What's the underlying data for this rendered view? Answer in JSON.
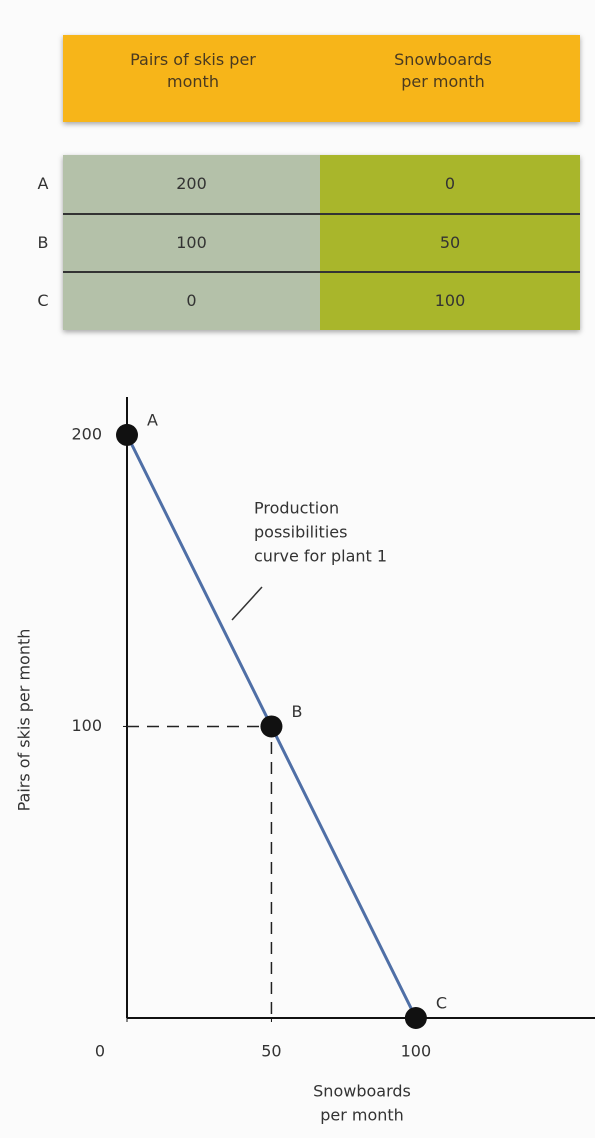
{
  "table": {
    "headers": [
      "Pairs of skis per month",
      "Snowboards per month"
    ],
    "rows": [
      [
        "A",
        200,
        0
      ],
      [
        "B",
        100,
        50
      ],
      [
        "C",
        0,
        100
      ]
    ]
  },
  "chart_data": {
    "type": "line",
    "x": [
      0,
      50,
      100
    ],
    "series": [
      {
        "color": "#4f6fa6",
        "values": [
          200,
          100,
          0
        ],
        "point_labels": [
          "A",
          "B",
          "C"
        ]
      }
    ],
    "xlim": [
      0,
      162
    ],
    "ylim": [
      0,
      213
    ],
    "xticks": [
      0,
      50,
      100
    ],
    "yticks": [
      100,
      200
    ],
    "xlabel": [
      "Snowboards",
      "per month"
    ],
    "ylabel": "Pairs of skis per month",
    "annotation": [
      "Production",
      "possibilities",
      "curve for plant 1"
    ]
  }
}
